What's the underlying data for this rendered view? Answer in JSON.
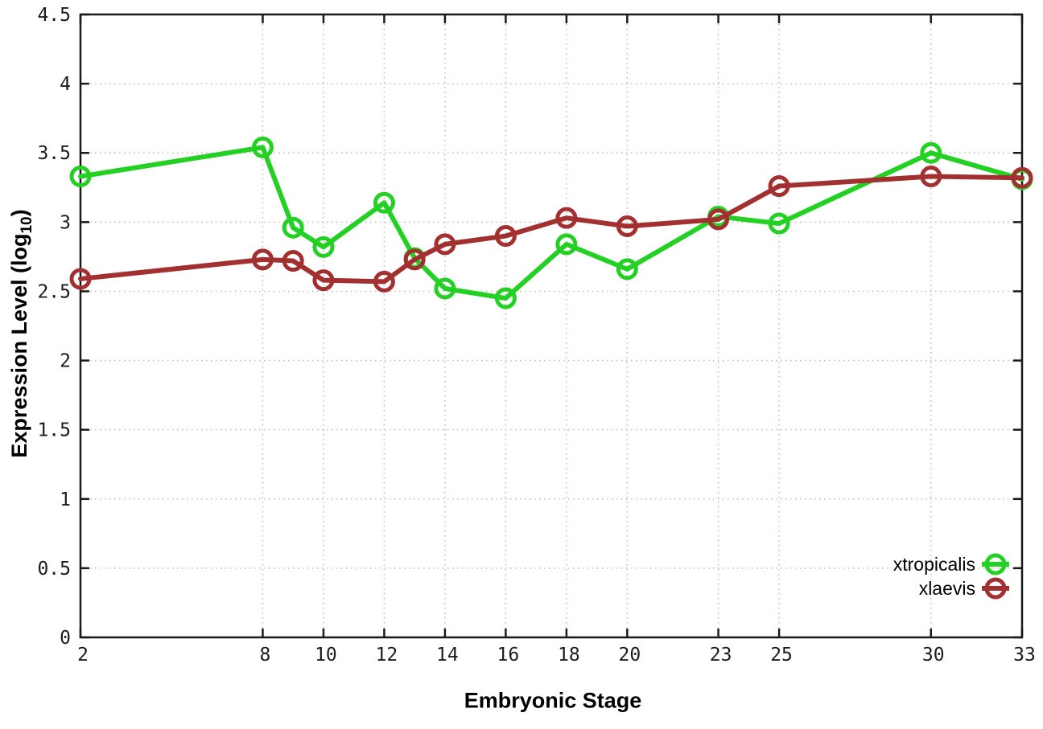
{
  "chart_data": {
    "type": "line",
    "title": "",
    "xlabel": "Embryonic Stage",
    "ylabel": "Expression Level (log10)",
    "ylabel_parts": {
      "pre": "Expression Level (log",
      "sub": "10",
      "post": ")"
    },
    "x": [
      2,
      8,
      9,
      10,
      12,
      13,
      14,
      16,
      18,
      20,
      23,
      25,
      30,
      33
    ],
    "series": [
      {
        "name": "xtropicalis",
        "color": "#25d025",
        "marker": "open-circle",
        "values": [
          3.33,
          3.54,
          2.96,
          2.82,
          3.14,
          2.74,
          2.52,
          2.45,
          2.84,
          2.66,
          3.04,
          2.99,
          3.5,
          3.31
        ]
      },
      {
        "name": "xlaevis",
        "color": "#a33030",
        "marker": "open-circle",
        "values": [
          2.59,
          2.73,
          2.72,
          2.58,
          2.57,
          2.73,
          2.84,
          2.9,
          3.03,
          2.97,
          3.02,
          3.26,
          3.33,
          3.32
        ]
      }
    ],
    "xlim": [
      2,
      33
    ],
    "ylim": [
      0,
      4.5
    ],
    "xticks": [
      2,
      8,
      10,
      12,
      14,
      16,
      18,
      20,
      23,
      25,
      30,
      33
    ],
    "xtick_labels": [
      "2",
      "8",
      "10",
      "12",
      "14",
      "16",
      "18",
      "20",
      "23",
      "25",
      "30",
      "33"
    ],
    "yticks": [
      0,
      0.5,
      1,
      1.5,
      2,
      2.5,
      3,
      3.5,
      4,
      4.5
    ],
    "ytick_labels": [
      "0",
      "0.5",
      "1",
      "1.5",
      "2",
      "2.5",
      "3",
      "3.5",
      "4",
      "4.5"
    ],
    "grid": true,
    "legend_position": "bottom-right",
    "style": {
      "background": "#ffffff",
      "border_color": "#1a1a1a",
      "grid_color": "#bdbdbd",
      "tick_label_color": "#1c1c1c",
      "line_width": 6,
      "marker_radius": 11,
      "marker_stroke": 5
    }
  }
}
